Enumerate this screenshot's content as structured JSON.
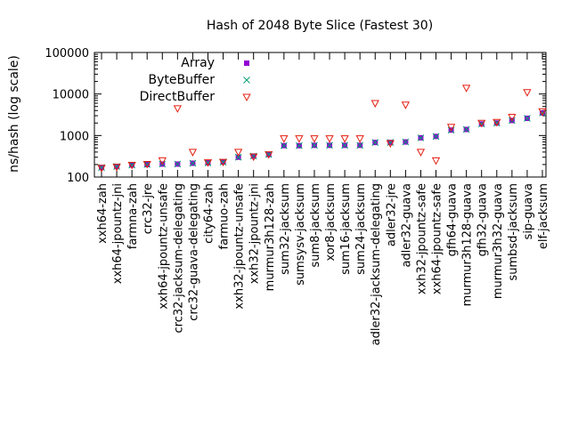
{
  "chart_data": {
    "type": "scatter",
    "title": "Hash of 2048 Byte Slice (Fastest 30)",
    "xlabel": "",
    "ylabel": "ns/hash (log scale)",
    "yscale": "log",
    "ylim": [
      100,
      100000
    ],
    "yticks": [
      100,
      1000,
      10000,
      100000
    ],
    "ytick_labels": [
      "100",
      "1000",
      "10000",
      "100000"
    ],
    "grid": false,
    "legend_position": "top-left",
    "categories": [
      "xxh64-zah",
      "xxh64-jpountz-jni",
      "farmna-zah",
      "crc32-jre",
      "xxh64-jpountz-unsafe",
      "crc32-jacksum-delegating",
      "crc32-guava-delegating",
      "city64-zah",
      "farmuo-zah",
      "xxh32-jpountz-unsafe",
      "xxh32-jpountz-jni",
      "murmur3h128-zah",
      "sum32-jacksum",
      "sumsysv-jacksum",
      "sum8-jacksum",
      "xor8-jacksum",
      "sum16-jacksum",
      "sum24-jacksum",
      "adler32-jacksum-delegating",
      "adler32-jre",
      "adler32-guava",
      "xxh32-jpountz-safe",
      "xxh64-jpountz-safe",
      "gfh64-guava",
      "murmur3h128-guava",
      "gfh32-guava",
      "murmur3h32-guava",
      "sumbsd-jacksum",
      "sip-guava",
      "elf-jacksum"
    ],
    "series": [
      {
        "name": "Array",
        "color": "#9400d3",
        "marker": "square",
        "values": [
          170,
          180,
          195,
          200,
          205,
          205,
          215,
          220,
          230,
          300,
          320,
          350,
          570,
          570,
          580,
          580,
          580,
          580,
          680,
          680,
          700,
          880,
          950,
          1350,
          1400,
          1900,
          2000,
          2300,
          2600,
          3500
        ]
      },
      {
        "name": "ByteBuffer",
        "color": "#009e73",
        "marker": "cross",
        "values": [
          170,
          180,
          195,
          200,
          205,
          205,
          215,
          220,
          230,
          300,
          320,
          350,
          570,
          570,
          580,
          580,
          580,
          580,
          680,
          680,
          700,
          880,
          950,
          1350,
          1400,
          1900,
          2000,
          2300,
          2600,
          3500
        ]
      },
      {
        "name": "DirectBuffer",
        "color": "#e51e10",
        "marker": "triangle-down",
        "values": [
          165,
          175,
          195,
          205,
          250,
          4500,
          400,
          225,
          230,
          400,
          310,
          350,
          850,
          850,
          850,
          850,
          850,
          850,
          6000,
          650,
          5500,
          400,
          250,
          1600,
          14000,
          2000,
          2100,
          2800,
          11000,
          3800
        ]
      }
    ]
  }
}
